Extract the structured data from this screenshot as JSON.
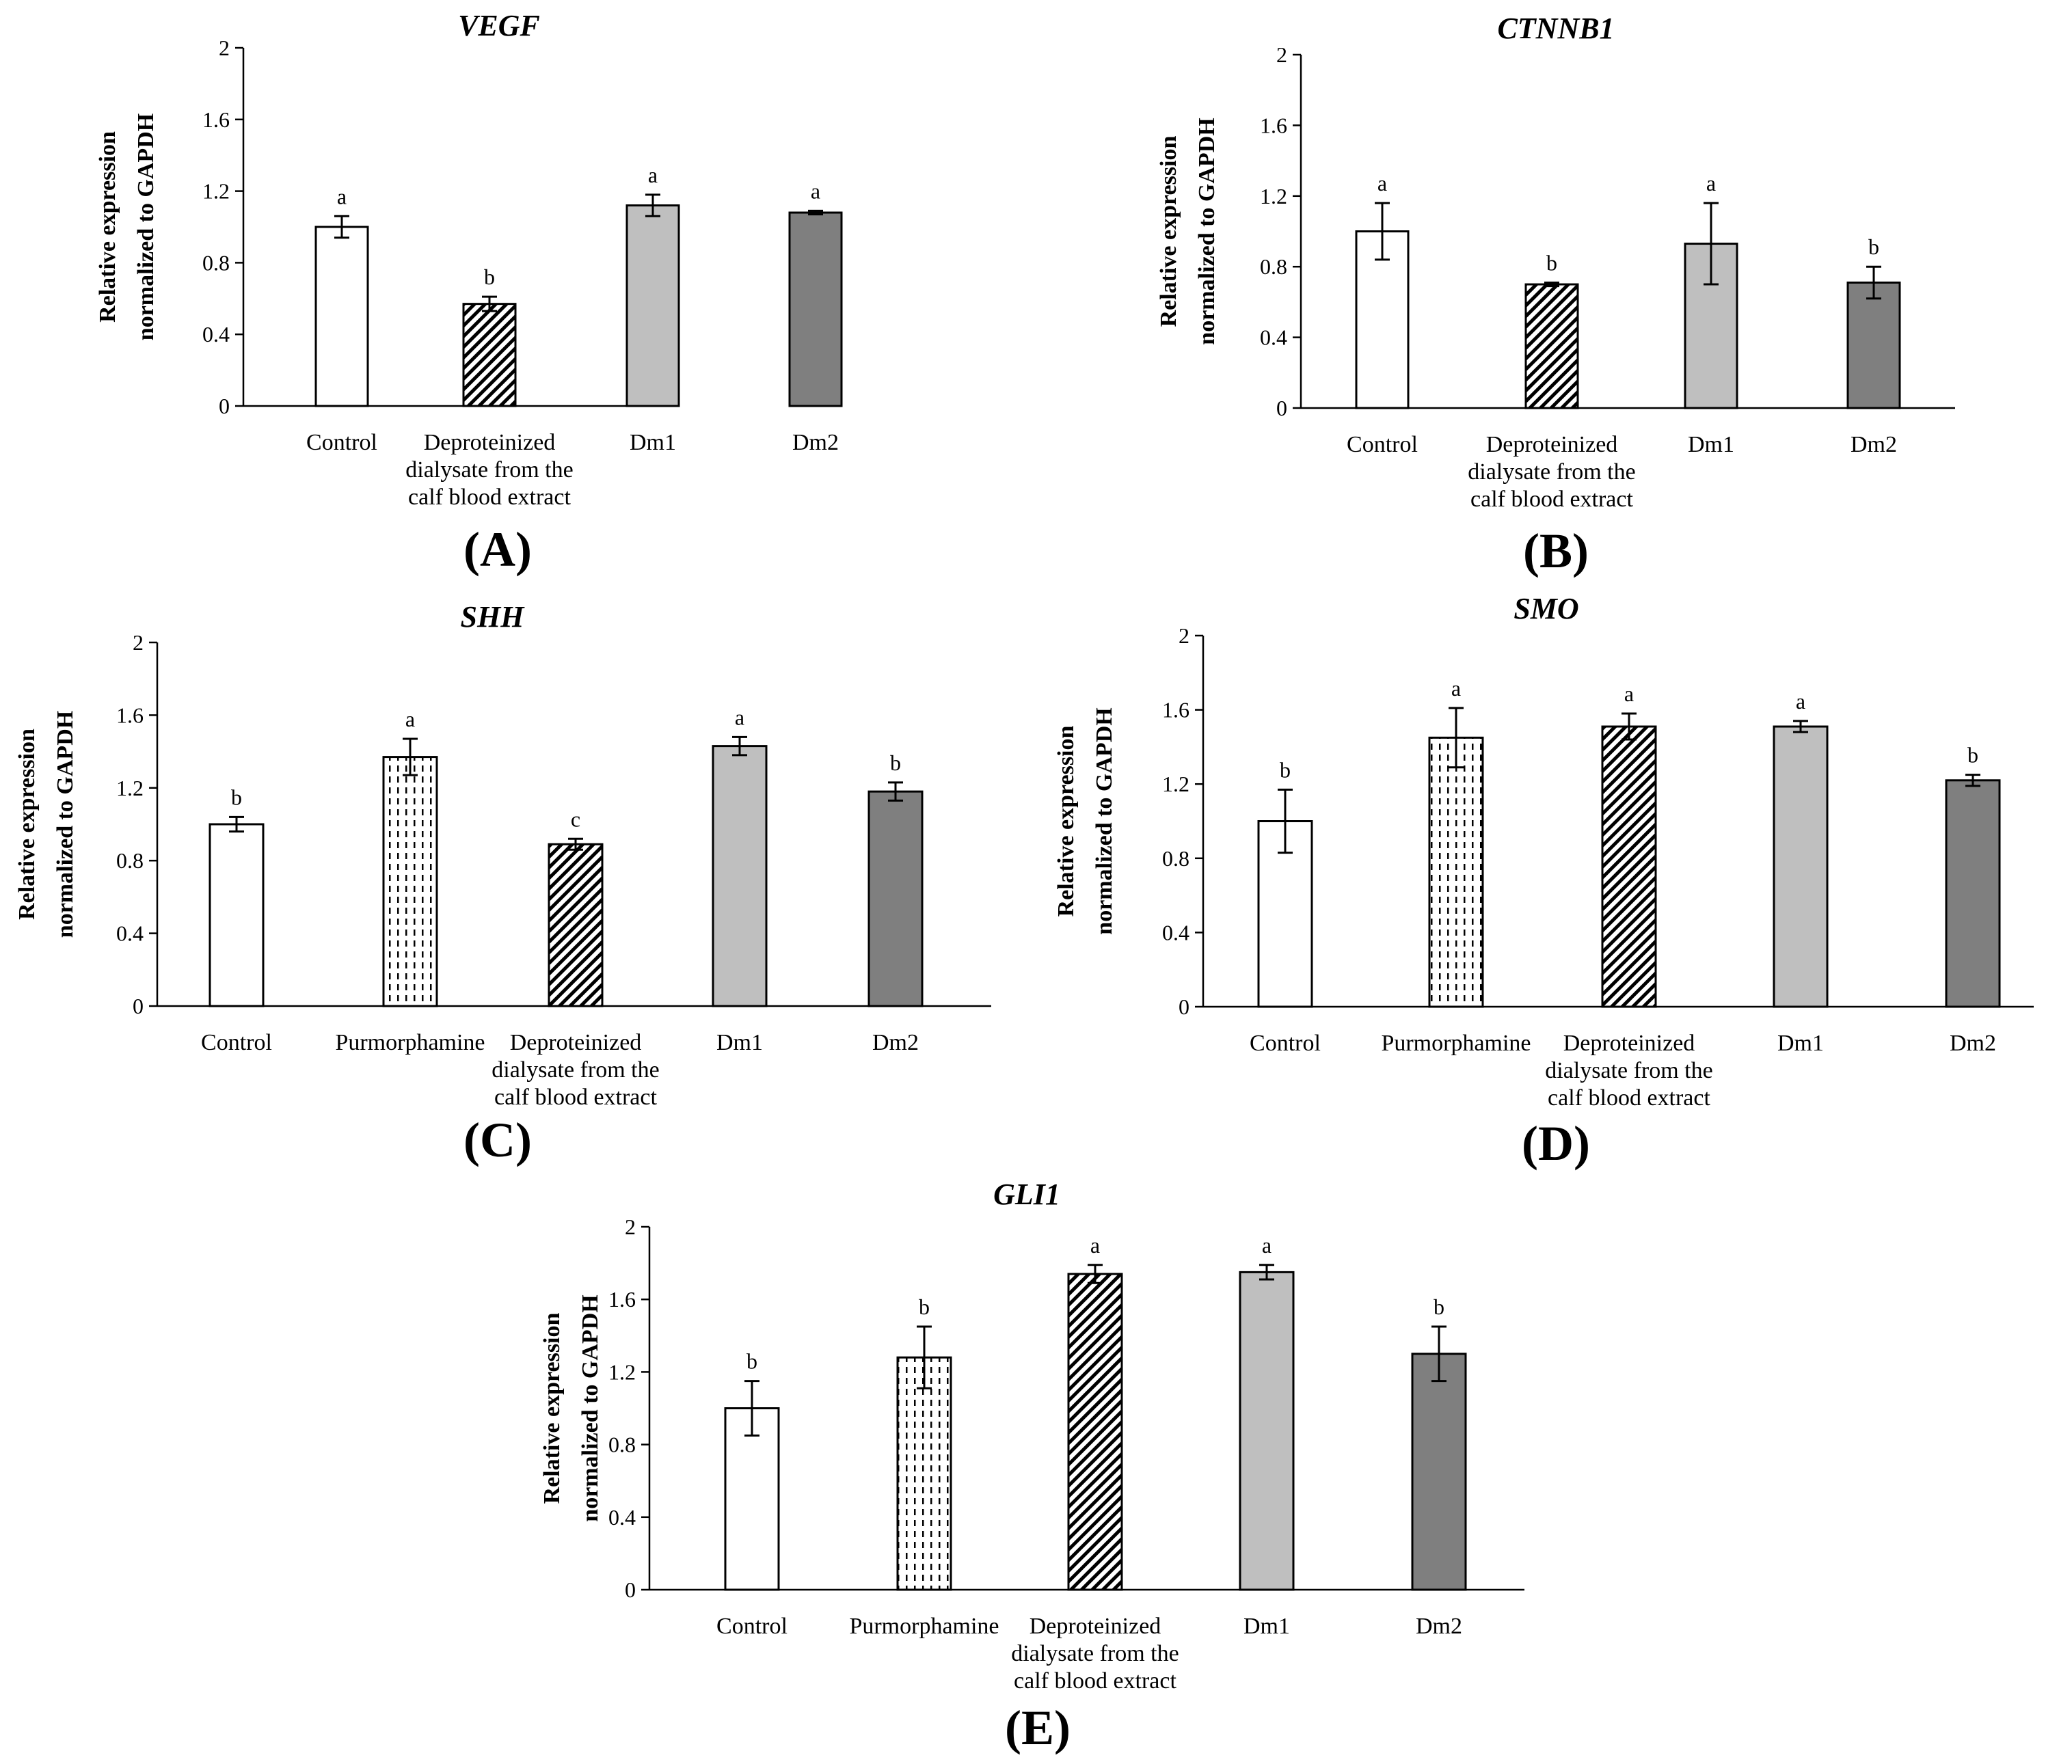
{
  "figure_caption": "Relative expression of VEGF, CTNNB1, SHH, SMO and GLI1 normalized to GAPDH",
  "colors": {
    "Control": "#ffffff",
    "Purmorphamine": "#ffffff",
    "Deproteinized": "#ffffff",
    "Dm1": "#bfbfbf",
    "Dm2": "#7f7f7f",
    "axis": "#000000"
  },
  "chart_data": [
    {
      "type": "bar",
      "panel": "(A)",
      "title": "VEGF",
      "ylabel": [
        "Relative expression",
        "normalized to GAPDH"
      ],
      "ylim": [
        0,
        2
      ],
      "yticks": [
        "0",
        "0.4",
        "0.8",
        "1.2",
        "1.6",
        "2"
      ],
      "categories": [
        [
          "Control"
        ],
        [
          "Deproteinized",
          "dialysate from the",
          "calf blood extract"
        ],
        [
          "Dm1"
        ],
        [
          "Dm2"
        ]
      ],
      "patterns": [
        "none",
        "diag",
        "none",
        "none"
      ],
      "values": [
        1.0,
        0.57,
        1.12,
        1.08
      ],
      "errors": [
        0.06,
        0.04,
        0.06,
        0.01
      ],
      "labels": [
        "a",
        "b",
        "a",
        "a"
      ]
    },
    {
      "type": "bar",
      "panel": "(B)",
      "title": "CTNNB1",
      "ylabel": [
        "Relative expression",
        "normalized to GAPDH"
      ],
      "ylim": [
        0,
        2
      ],
      "yticks": [
        "0",
        "0.4",
        "0.8",
        "1.2",
        "1.6",
        "2"
      ],
      "categories": [
        [
          "Control"
        ],
        [
          "Deproteinized",
          "dialysate from the",
          "calf blood extract"
        ],
        [
          "Dm1"
        ],
        [
          "Dm2"
        ]
      ],
      "patterns": [
        "none",
        "diag",
        "none",
        "none"
      ],
      "values": [
        1.0,
        0.7,
        0.93,
        0.71
      ],
      "errors": [
        0.16,
        0.01,
        0.23,
        0.09
      ],
      "labels": [
        "a",
        "b",
        "a",
        "b"
      ]
    },
    {
      "type": "bar",
      "panel": "(C)",
      "title": "SHH",
      "ylabel": [
        "Relative expression",
        "normalized to GAPDH"
      ],
      "ylim": [
        0,
        2
      ],
      "yticks": [
        "0",
        "0.4",
        "0.8",
        "1.2",
        "1.6",
        "2"
      ],
      "categories": [
        [
          "Control"
        ],
        [
          "Purmorphamine"
        ],
        [
          "Deproteinized",
          "dialysate from the",
          "calf blood extract"
        ],
        [
          "Dm1"
        ],
        [
          "Dm2"
        ]
      ],
      "patterns": [
        "none",
        "dash",
        "diag",
        "none",
        "none"
      ],
      "values": [
        1.0,
        1.37,
        0.89,
        1.43,
        1.18
      ],
      "errors": [
        0.04,
        0.1,
        0.03,
        0.05,
        0.05
      ],
      "labels": [
        "b",
        "a",
        "c",
        "a",
        "b"
      ]
    },
    {
      "type": "bar",
      "panel": "(D)",
      "title": "SMO",
      "ylabel": [
        "Relative expression",
        "normalized to GAPDH"
      ],
      "ylim": [
        0,
        2
      ],
      "yticks": [
        "0",
        "0.4",
        "0.8",
        "1.2",
        "1.6",
        "2"
      ],
      "categories": [
        [
          "Control"
        ],
        [
          "Purmorphamine"
        ],
        [
          "Deproteinized",
          "dialysate from the",
          "calf blood extract"
        ],
        [
          "Dm1"
        ],
        [
          "Dm2"
        ]
      ],
      "patterns": [
        "none",
        "dash",
        "diag",
        "none",
        "none"
      ],
      "values": [
        1.0,
        1.45,
        1.51,
        1.51,
        1.22
      ],
      "errors": [
        0.17,
        0.16,
        0.07,
        0.03,
        0.03
      ],
      "labels": [
        "b",
        "a",
        "a",
        "a",
        "b"
      ]
    },
    {
      "type": "bar",
      "panel": "(E)",
      "title": "GLI1",
      "ylabel": [
        "Relative expression",
        "normalized to GAPDH"
      ],
      "ylim": [
        0,
        2
      ],
      "yticks": [
        "0",
        "0.4",
        "0.8",
        "1.2",
        "1.6",
        "2"
      ],
      "categories": [
        [
          "Control"
        ],
        [
          "Purmorphamine"
        ],
        [
          "Deproteinized",
          "dialysate from the",
          "calf blood extract"
        ],
        [
          "Dm1"
        ],
        [
          "Dm2"
        ]
      ],
      "patterns": [
        "none",
        "dash",
        "diag",
        "none",
        "none"
      ],
      "values": [
        1.0,
        1.28,
        1.74,
        1.75,
        1.3
      ],
      "errors": [
        0.15,
        0.17,
        0.05,
        0.04,
        0.15
      ],
      "labels": [
        "b",
        "b",
        "a",
        "a",
        "b"
      ]
    }
  ]
}
